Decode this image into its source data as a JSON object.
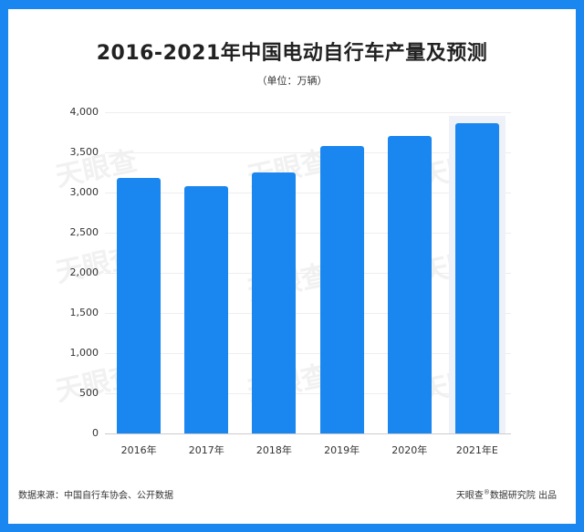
{
  "header": {
    "title": "2016-2021年中国电动自行车产量及预测",
    "subtitle": "（单位：万辆）"
  },
  "footer": {
    "source": "数据来源：中国自行车协会、公开数据",
    "publisher": "天眼查",
    "publisher_mark": "®",
    "publisher_suffix": "数据研究院 出品"
  },
  "watermark": "天眼查",
  "colors": {
    "bar": "#1a86f0",
    "frame": "#1a86f0",
    "highlight": "#eef2f8"
  },
  "chart_data": {
    "type": "bar",
    "title": "2016-2021年中国电动自行车产量及预测",
    "subtitle": "（单位：万辆）",
    "xlabel": "",
    "ylabel": "万辆",
    "categories": [
      "2016年",
      "2017年",
      "2018年",
      "2019年",
      "2020年",
      "2021年E"
    ],
    "values": [
      3180,
      3080,
      3250,
      3580,
      3700,
      3860
    ],
    "ylim": [
      0,
      4000
    ],
    "yticks": [
      "0",
      "500",
      "1,000",
      "1,500",
      "2,000",
      "2,500",
      "3,000",
      "3,500",
      "4,000"
    ],
    "grid": true,
    "legend": "none",
    "highlighted_category": "2021年E"
  }
}
